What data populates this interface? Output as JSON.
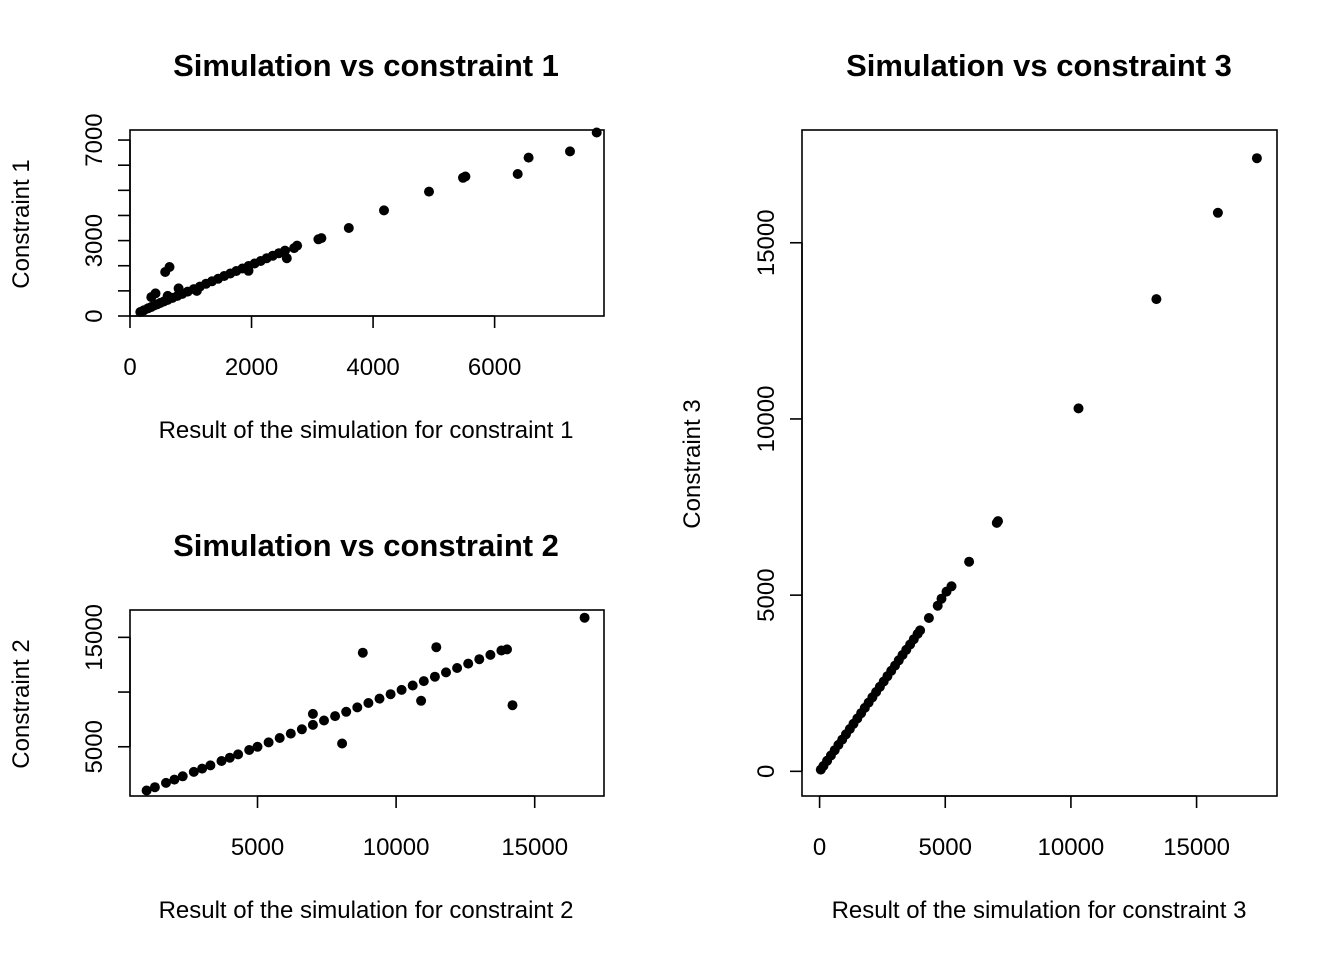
{
  "chart_data": [
    {
      "type": "scatter",
      "title": "Simulation vs constraint 1",
      "xlabel": "Result of the simulation for constraint 1",
      "ylabel": "Constraint 1",
      "xlim": [
        0,
        7800
      ],
      "ylim": [
        0,
        7400
      ],
      "xticks": [
        0,
        2000,
        4000,
        6000
      ],
      "xtick_labels": [
        "0",
        "2000",
        "4000",
        "6000"
      ],
      "yticks": [
        0,
        1000,
        2000,
        3000,
        4000,
        5000,
        6000,
        7000
      ],
      "ytick_labels": [
        "0",
        "",
        "",
        "3000",
        "",
        "",
        "",
        "7000"
      ],
      "grid": false,
      "points": [
        [
          170,
          160
        ],
        [
          230,
          230
        ],
        [
          300,
          310
        ],
        [
          350,
          360
        ],
        [
          400,
          420
        ],
        [
          450,
          470
        ],
        [
          500,
          520
        ],
        [
          560,
          580
        ],
        [
          620,
          640
        ],
        [
          700,
          720
        ],
        [
          780,
          800
        ],
        [
          860,
          880
        ],
        [
          950,
          970
        ],
        [
          1050,
          1070
        ],
        [
          1150,
          1170
        ],
        [
          1250,
          1280
        ],
        [
          1350,
          1380
        ],
        [
          1450,
          1480
        ],
        [
          1550,
          1590
        ],
        [
          1650,
          1690
        ],
        [
          1750,
          1790
        ],
        [
          1850,
          1890
        ],
        [
          1950,
          1990
        ],
        [
          2050,
          2090
        ],
        [
          2150,
          2190
        ],
        [
          2250,
          2300
        ],
        [
          2350,
          2400
        ],
        [
          2450,
          2500
        ],
        [
          2550,
          2600
        ],
        [
          350,
          750
        ],
        [
          420,
          900
        ],
        [
          580,
          1750
        ],
        [
          650,
          1950
        ],
        [
          620,
          800
        ],
        [
          800,
          1100
        ],
        [
          1100,
          1000
        ],
        [
          1950,
          1800
        ],
        [
          2580,
          2300
        ],
        [
          2700,
          2700
        ],
        [
          2750,
          2800
        ],
        [
          3100,
          3050
        ],
        [
          3150,
          3100
        ],
        [
          3600,
          3500
        ],
        [
          4180,
          4200
        ],
        [
          4920,
          4950
        ],
        [
          5480,
          5500
        ],
        [
          5520,
          5550
        ],
        [
          6380,
          5650
        ],
        [
          6560,
          6300
        ],
        [
          7240,
          6550
        ],
        [
          7680,
          7300
        ]
      ]
    },
    {
      "type": "scatter",
      "title": "Simulation vs constraint 2",
      "xlabel": "Result of the simulation for constraint 2",
      "ylabel": "Constraint 2",
      "xlim": [
        400,
        17500
      ],
      "ylim": [
        500,
        17500
      ],
      "xticks": [
        5000,
        10000,
        15000
      ],
      "xtick_labels": [
        "5000",
        "10000",
        "15000"
      ],
      "yticks": [
        5000,
        10000,
        15000
      ],
      "ytick_labels": [
        "5000",
        "",
        "15000"
      ],
      "grid": false,
      "points": [
        [
          1000,
          1000
        ],
        [
          1300,
          1300
        ],
        [
          1700,
          1700
        ],
        [
          2000,
          2000
        ],
        [
          2300,
          2300
        ],
        [
          2700,
          2700
        ],
        [
          3000,
          3000
        ],
        [
          3300,
          3300
        ],
        [
          3700,
          3700
        ],
        [
          4000,
          4000
        ],
        [
          4300,
          4300
        ],
        [
          4700,
          4700
        ],
        [
          5000,
          5000
        ],
        [
          5400,
          5400
        ],
        [
          5800,
          5800
        ],
        [
          6200,
          6200
        ],
        [
          6600,
          6600
        ],
        [
          7000,
          7000
        ],
        [
          7400,
          7400
        ],
        [
          7800,
          7800
        ],
        [
          8200,
          8200
        ],
        [
          8600,
          8600
        ],
        [
          9000,
          9000
        ],
        [
          9400,
          9400
        ],
        [
          9800,
          9800
        ],
        [
          10200,
          10200
        ],
        [
          10600,
          10600
        ],
        [
          11000,
          11000
        ],
        [
          11400,
          11400
        ],
        [
          11800,
          11800
        ],
        [
          12200,
          12200
        ],
        [
          12600,
          12600
        ],
        [
          13000,
          13000
        ],
        [
          13400,
          13400
        ],
        [
          13800,
          13800
        ],
        [
          14000,
          13900
        ],
        [
          7000,
          8000
        ],
        [
          8050,
          5300
        ],
        [
          8800,
          13600
        ],
        [
          10900,
          9200
        ],
        [
          11450,
          14100
        ],
        [
          14200,
          8800
        ],
        [
          16800,
          16800
        ]
      ]
    },
    {
      "type": "scatter",
      "title": "Simulation vs constraint 3",
      "xlabel": "Result of the simulation for constraint 3",
      "ylabel": "Constraint 3",
      "xlim": [
        -700,
        18200
      ],
      "ylim": [
        -700,
        18200
      ],
      "xticks": [
        0,
        5000,
        10000,
        15000
      ],
      "xtick_labels": [
        "0",
        "5000",
        "10000",
        "15000"
      ],
      "yticks": [
        0,
        5000,
        10000,
        15000
      ],
      "ytick_labels": [
        "0",
        "5000",
        "10000",
        "15000"
      ],
      "grid": false,
      "points": [
        [
          50,
          50
        ],
        [
          150,
          150
        ],
        [
          300,
          300
        ],
        [
          450,
          450
        ],
        [
          600,
          600
        ],
        [
          750,
          750
        ],
        [
          900,
          900
        ],
        [
          1050,
          1050
        ],
        [
          1200,
          1200
        ],
        [
          1350,
          1350
        ],
        [
          1500,
          1500
        ],
        [
          1650,
          1650
        ],
        [
          1800,
          1800
        ],
        [
          1950,
          1950
        ],
        [
          2100,
          2100
        ],
        [
          2250,
          2250
        ],
        [
          2400,
          2400
        ],
        [
          2550,
          2550
        ],
        [
          2700,
          2700
        ],
        [
          2850,
          2850
        ],
        [
          3000,
          3000
        ],
        [
          3150,
          3150
        ],
        [
          3300,
          3300
        ],
        [
          3450,
          3450
        ],
        [
          3600,
          3600
        ],
        [
          3750,
          3750
        ],
        [
          3900,
          3900
        ],
        [
          4000,
          4000
        ],
        [
          4350,
          4350
        ],
        [
          4700,
          4700
        ],
        [
          4850,
          4900
        ],
        [
          5050,
          5100
        ],
        [
          5250,
          5250
        ],
        [
          5950,
          5950
        ],
        [
          7050,
          7050
        ],
        [
          7100,
          7100
        ],
        [
          10300,
          10300
        ],
        [
          13400,
          13400
        ],
        [
          15850,
          15850
        ],
        [
          17400,
          17400
        ]
      ]
    }
  ]
}
